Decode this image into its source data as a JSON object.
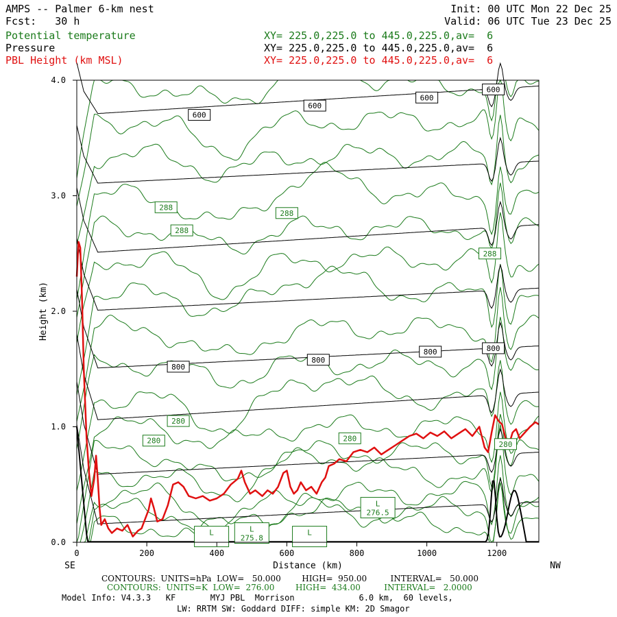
{
  "header": {
    "title": "AMPS -- Palmer 6-km nest",
    "fcst_label": "Fcst:",
    "fcst_value": "30 h",
    "init": "Init: 00 UTC Mon 22 Dec 25",
    "valid": "Valid: 06 UTC Tue 23 Dec 25",
    "fields": [
      {
        "name": "Potential temperature",
        "xy": "XY= 225.0,225.0 to 445.0,225.0,av=  6",
        "color": "#1a7a1a"
      },
      {
        "name": "Pressure",
        "xy": "XY= 225.0,225.0 to 445.0,225.0,av=  6",
        "color": "#000000"
      },
      {
        "name": "PBL Height (km MSL)",
        "xy": "XY= 225.0,225.0 to 445.0,225.0,av=  6",
        "color": "#e01010"
      }
    ]
  },
  "chart_data": {
    "type": "line",
    "xlabel": "Distance (km)",
    "ylabel": "Height (km)",
    "xlim": [
      0,
      1320
    ],
    "ylim": [
      0,
      4.0
    ],
    "x_ticks": [
      0,
      200,
      400,
      600,
      800,
      1000,
      1200
    ],
    "x_tick_labels": [
      "0",
      "200",
      "400",
      "600",
      "800",
      "1000",
      "1200"
    ],
    "y_ticks": [
      0,
      1,
      2,
      3,
      4
    ],
    "y_tick_labels": [
      "0.0",
      "1.0",
      "2.0",
      "3.0",
      "4.0"
    ],
    "left_end_label": "SE",
    "right_end_label": "NW",
    "grid": false,
    "series": [
      {
        "name": "PBL Height (km MSL)",
        "color": "#e01010",
        "x": [
          0,
          5,
          10,
          15,
          20,
          28,
          35,
          42,
          50,
          55,
          60,
          65,
          70,
          80,
          90,
          100,
          115,
          130,
          145,
          160,
          175,
          185,
          195,
          205,
          212,
          220,
          230,
          245,
          260,
          275,
          290,
          305,
          320,
          340,
          360,
          380,
          400,
          420,
          440,
          460,
          470,
          480,
          495,
          510,
          530,
          545,
          560,
          575,
          590,
          600,
          610,
          620,
          630,
          640,
          655,
          670,
          685,
          700,
          710,
          720,
          735,
          750,
          770,
          790,
          810,
          830,
          850,
          870,
          890,
          910,
          930,
          950,
          970,
          990,
          1010,
          1030,
          1050,
          1070,
          1090,
          1110,
          1130,
          1150,
          1165,
          1175,
          1185,
          1195,
          1205,
          1215,
          1225,
          1235,
          1245,
          1255,
          1265,
          1280,
          1295,
          1310,
          1320
        ],
        "y": [
          2.3,
          2.6,
          2.55,
          2.1,
          1.5,
          0.9,
          0.6,
          0.4,
          0.55,
          0.75,
          0.55,
          0.3,
          0.15,
          0.2,
          0.12,
          0.08,
          0.12,
          0.1,
          0.15,
          0.05,
          0.1,
          0.12,
          0.2,
          0.28,
          0.38,
          0.3,
          0.18,
          0.2,
          0.32,
          0.5,
          0.52,
          0.48,
          0.4,
          0.38,
          0.4,
          0.36,
          0.38,
          0.42,
          0.5,
          0.55,
          0.62,
          0.52,
          0.42,
          0.45,
          0.4,
          0.45,
          0.42,
          0.48,
          0.6,
          0.62,
          0.48,
          0.42,
          0.45,
          0.52,
          0.45,
          0.48,
          0.42,
          0.52,
          0.56,
          0.66,
          0.68,
          0.72,
          0.7,
          0.78,
          0.8,
          0.78,
          0.82,
          0.76,
          0.8,
          0.84,
          0.88,
          0.92,
          0.94,
          0.9,
          0.95,
          0.92,
          0.96,
          0.9,
          0.94,
          0.98,
          0.92,
          1.0,
          0.82,
          0.78,
          0.95,
          1.1,
          1.05,
          1.02,
          0.9,
          0.85,
          0.95,
          0.98,
          0.9,
          0.95,
          1.0,
          1.04,
          1.02
        ]
      }
    ],
    "pressure_contours": {
      "color": "#000000",
      "units": "hPa",
      "levels": [
        {
          "label": "600",
          "y0": 3.7,
          "y1": 3.95
        },
        {
          "label": "",
          "y0": 3.1,
          "y1": 3.3
        },
        {
          "label": "",
          "y0": 2.5,
          "y1": 2.75
        },
        {
          "label": "",
          "y0": 2.0,
          "y1": 2.2
        },
        {
          "label": "800",
          "y0": 1.5,
          "y1": 1.7
        },
        {
          "label": "",
          "y0": 1.05,
          "y1": 1.3
        },
        {
          "label": "",
          "y0": 0.58,
          "y1": 0.78
        },
        {
          "label": "",
          "y0": 0.15,
          "y1": 0.35
        }
      ],
      "labels": [
        {
          "text": "600",
          "x": 350,
          "y": 3.7
        },
        {
          "text": "600",
          "x": 680,
          "y": 3.78
        },
        {
          "text": "600",
          "x": 1000,
          "y": 3.85
        },
        {
          "text": "600",
          "x": 1190,
          "y": 3.92
        },
        {
          "text": "800",
          "x": 290,
          "y": 1.52
        },
        {
          "text": "800",
          "x": 690,
          "y": 1.58
        },
        {
          "text": "800",
          "x": 1010,
          "y": 1.65
        },
        {
          "text": "800",
          "x": 1190,
          "y": 1.68
        }
      ]
    },
    "theta_contours": {
      "color": "#1a7a1a",
      "units": "K",
      "labels": [
        {
          "text": "288",
          "x": 255,
          "y": 2.9
        },
        {
          "text": "288",
          "x": 300,
          "y": 2.7
        },
        {
          "text": "288",
          "x": 600,
          "y": 2.85
        },
        {
          "text": "288",
          "x": 1180,
          "y": 2.5
        },
        {
          "text": "280",
          "x": 290,
          "y": 1.05
        },
        {
          "text": "280",
          "x": 220,
          "y": 0.88
        },
        {
          "text": "280",
          "x": 780,
          "y": 0.9
        },
        {
          "text": "280",
          "x": 1225,
          "y": 0.85
        }
      ],
      "lows": [
        {
          "text": "L",
          "value": "",
          "x": 385,
          "y": 0.05
        },
        {
          "text": "L",
          "value": "275.8",
          "x": 500,
          "y": 0.08
        },
        {
          "text": "L",
          "value": "",
          "x": 665,
          "y": 0.05
        },
        {
          "text": "L",
          "value": "276.5",
          "x": 860,
          "y": 0.3
        }
      ]
    }
  },
  "footer": {
    "line1": "CONTOURS:  UNITS=hPa  LOW=   50.000        HIGH=  950.00         INTERVAL=   50.000",
    "line2": "CONTOURS:  UNITS=K  LOW=  276.00        HIGH=  434.00         INTERVAL=   2.0000",
    "line3": "Model Info: V4.3.3   KF       MYJ PBL  Morrison             6.0 km,  60 levels,",
    "line4": "LW: RRTM SW: Goddard DIFF: simple KM: 2D Smagor"
  }
}
